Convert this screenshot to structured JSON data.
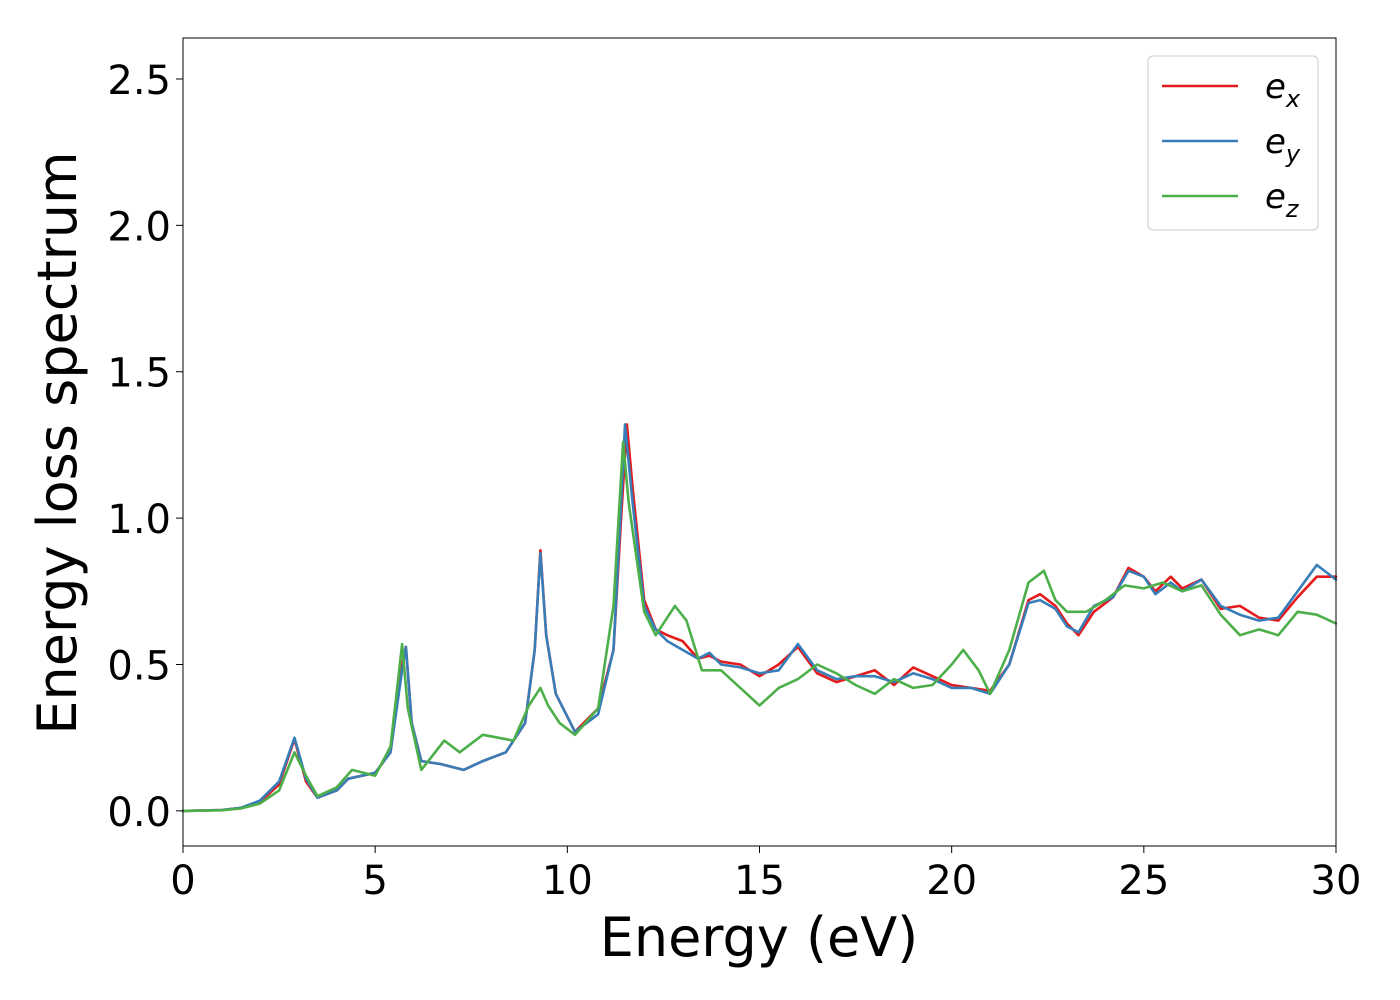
{
  "chart_data": {
    "type": "line",
    "title": "",
    "xlabel": "Energy (eV)",
    "ylabel": "Energy loss spectrum",
    "xlim": [
      0,
      30
    ],
    "ylim": [
      -0.12,
      2.64
    ],
    "xticks": [
      0,
      5,
      10,
      15,
      20,
      25,
      30
    ],
    "xtick_labels": [
      "0",
      "5",
      "10",
      "15",
      "20",
      "25",
      "30"
    ],
    "yticks": [
      0.0,
      0.5,
      1.0,
      1.5,
      2.0,
      2.5
    ],
    "ytick_labels": [
      "0.0",
      "0.5",
      "1.0",
      "1.5",
      "2.0",
      "2.5"
    ],
    "grid": false,
    "legend_position": "top-right",
    "series": [
      {
        "name": "e",
        "subscript": "x",
        "color": "#e41a1c",
        "points": [
          [
            0,
            0
          ],
          [
            1,
            0.003
          ],
          [
            1.5,
            0.01
          ],
          [
            2,
            0.03
          ],
          [
            2.5,
            0.09
          ],
          [
            2.9,
            0.245
          ],
          [
            3.2,
            0.1
          ],
          [
            3.5,
            0.045
          ],
          [
            4,
            0.07
          ],
          [
            4.3,
            0.11
          ],
          [
            5,
            0.13
          ],
          [
            5.4,
            0.2
          ],
          [
            5.7,
            0.5
          ],
          [
            5.8,
            0.56
          ],
          [
            5.95,
            0.3
          ],
          [
            6.2,
            0.17
          ],
          [
            6.7,
            0.16
          ],
          [
            7.3,
            0.14
          ],
          [
            7.8,
            0.17
          ],
          [
            8.4,
            0.2
          ],
          [
            8.9,
            0.3
          ],
          [
            9.15,
            0.55
          ],
          [
            9.3,
            0.89
          ],
          [
            9.45,
            0.6
          ],
          [
            9.7,
            0.4
          ],
          [
            10.2,
            0.27
          ],
          [
            10.8,
            0.35
          ],
          [
            11.2,
            0.55
          ],
          [
            11.4,
            1.0
          ],
          [
            11.55,
            1.32
          ],
          [
            11.7,
            1.1
          ],
          [
            12,
            0.72
          ],
          [
            12.3,
            0.62
          ],
          [
            12.6,
            0.6
          ],
          [
            13,
            0.58
          ],
          [
            13.4,
            0.52
          ],
          [
            13.7,
            0.53
          ],
          [
            14,
            0.51
          ],
          [
            14.5,
            0.5
          ],
          [
            15,
            0.46
          ],
          [
            15.5,
            0.5
          ],
          [
            16,
            0.56
          ],
          [
            16.5,
            0.47
          ],
          [
            17,
            0.44
          ],
          [
            17.5,
            0.46
          ],
          [
            18,
            0.48
          ],
          [
            18.5,
            0.43
          ],
          [
            19,
            0.49
          ],
          [
            19.5,
            0.46
          ],
          [
            20,
            0.43
          ],
          [
            20.5,
            0.42
          ],
          [
            21,
            0.41
          ],
          [
            21.5,
            0.5
          ],
          [
            22,
            0.72
          ],
          [
            22.3,
            0.74
          ],
          [
            22.7,
            0.7
          ],
          [
            23,
            0.64
          ],
          [
            23.3,
            0.6
          ],
          [
            23.7,
            0.68
          ],
          [
            24.2,
            0.73
          ],
          [
            24.6,
            0.83
          ],
          [
            25,
            0.8
          ],
          [
            25.3,
            0.75
          ],
          [
            25.7,
            0.8
          ],
          [
            26,
            0.76
          ],
          [
            26.5,
            0.79
          ],
          [
            27,
            0.69
          ],
          [
            27.5,
            0.7
          ],
          [
            28,
            0.66
          ],
          [
            28.5,
            0.65
          ],
          [
            29,
            0.73
          ],
          [
            29.5,
            0.8
          ],
          [
            30,
            0.8
          ]
        ]
      },
      {
        "name": "e",
        "subscript": "y",
        "color": "#377eb8",
        "points": [
          [
            0,
            0
          ],
          [
            1,
            0.003
          ],
          [
            1.5,
            0.01
          ],
          [
            2,
            0.035
          ],
          [
            2.5,
            0.1
          ],
          [
            2.9,
            0.25
          ],
          [
            3.2,
            0.11
          ],
          [
            3.5,
            0.045
          ],
          [
            4,
            0.07
          ],
          [
            4.3,
            0.11
          ],
          [
            5,
            0.13
          ],
          [
            5.4,
            0.2
          ],
          [
            5.7,
            0.48
          ],
          [
            5.8,
            0.56
          ],
          [
            5.95,
            0.3
          ],
          [
            6.2,
            0.17
          ],
          [
            6.7,
            0.16
          ],
          [
            7.3,
            0.14
          ],
          [
            7.8,
            0.17
          ],
          [
            8.4,
            0.2
          ],
          [
            8.9,
            0.3
          ],
          [
            9.15,
            0.55
          ],
          [
            9.3,
            0.88
          ],
          [
            9.45,
            0.6
          ],
          [
            9.7,
            0.4
          ],
          [
            10.2,
            0.27
          ],
          [
            10.8,
            0.33
          ],
          [
            11.2,
            0.55
          ],
          [
            11.4,
            1.05
          ],
          [
            11.5,
            1.32
          ],
          [
            11.7,
            1.05
          ],
          [
            12,
            0.7
          ],
          [
            12.3,
            0.62
          ],
          [
            12.6,
            0.58
          ],
          [
            13,
            0.55
          ],
          [
            13.4,
            0.52
          ],
          [
            13.7,
            0.54
          ],
          [
            14,
            0.5
          ],
          [
            14.5,
            0.49
          ],
          [
            15,
            0.47
          ],
          [
            15.5,
            0.48
          ],
          [
            16,
            0.57
          ],
          [
            16.5,
            0.48
          ],
          [
            17,
            0.45
          ],
          [
            17.5,
            0.46
          ],
          [
            18,
            0.46
          ],
          [
            18.5,
            0.44
          ],
          [
            19,
            0.47
          ],
          [
            19.5,
            0.45
          ],
          [
            20,
            0.42
          ],
          [
            20.5,
            0.42
          ],
          [
            21,
            0.4
          ],
          [
            21.5,
            0.5
          ],
          [
            22,
            0.71
          ],
          [
            22.3,
            0.72
          ],
          [
            22.7,
            0.69
          ],
          [
            23,
            0.63
          ],
          [
            23.3,
            0.61
          ],
          [
            23.7,
            0.7
          ],
          [
            24.2,
            0.73
          ],
          [
            24.6,
            0.82
          ],
          [
            25,
            0.8
          ],
          [
            25.3,
            0.74
          ],
          [
            25.7,
            0.78
          ],
          [
            26,
            0.75
          ],
          [
            26.5,
            0.79
          ],
          [
            27,
            0.7
          ],
          [
            27.5,
            0.67
          ],
          [
            28,
            0.65
          ],
          [
            28.5,
            0.66
          ],
          [
            29,
            0.75
          ],
          [
            29.5,
            0.84
          ],
          [
            30,
            0.79
          ]
        ]
      },
      {
        "name": "e",
        "subscript": "z",
        "color": "#4daf4a",
        "points": [
          [
            0,
            0
          ],
          [
            1,
            0.002
          ],
          [
            1.5,
            0.008
          ],
          [
            2,
            0.025
          ],
          [
            2.5,
            0.07
          ],
          [
            2.9,
            0.2
          ],
          [
            3.2,
            0.12
          ],
          [
            3.5,
            0.05
          ],
          [
            4,
            0.08
          ],
          [
            4.4,
            0.14
          ],
          [
            5,
            0.12
          ],
          [
            5.4,
            0.22
          ],
          [
            5.6,
            0.45
          ],
          [
            5.7,
            0.57
          ],
          [
            5.85,
            0.35
          ],
          [
            6.2,
            0.14
          ],
          [
            6.8,
            0.24
          ],
          [
            7.2,
            0.2
          ],
          [
            7.8,
            0.26
          ],
          [
            8.2,
            0.25
          ],
          [
            8.6,
            0.24
          ],
          [
            9,
            0.36
          ],
          [
            9.3,
            0.42
          ],
          [
            9.5,
            0.36
          ],
          [
            9.8,
            0.3
          ],
          [
            10.2,
            0.26
          ],
          [
            10.8,
            0.35
          ],
          [
            11.2,
            0.7
          ],
          [
            11.45,
            1.26
          ],
          [
            11.6,
            1.05
          ],
          [
            12,
            0.68
          ],
          [
            12.3,
            0.6
          ],
          [
            12.8,
            0.7
          ],
          [
            13.1,
            0.65
          ],
          [
            13.5,
            0.48
          ],
          [
            14,
            0.48
          ],
          [
            14.5,
            0.42
          ],
          [
            15,
            0.36
          ],
          [
            15.5,
            0.42
          ],
          [
            16,
            0.45
          ],
          [
            16.5,
            0.5
          ],
          [
            17,
            0.47
          ],
          [
            17.5,
            0.43
          ],
          [
            18,
            0.4
          ],
          [
            18.5,
            0.45
          ],
          [
            19,
            0.42
          ],
          [
            19.5,
            0.43
          ],
          [
            20,
            0.5
          ],
          [
            20.3,
            0.55
          ],
          [
            20.7,
            0.48
          ],
          [
            21,
            0.4
          ],
          [
            21.5,
            0.55
          ],
          [
            22,
            0.78
          ],
          [
            22.4,
            0.82
          ],
          [
            22.7,
            0.72
          ],
          [
            23,
            0.68
          ],
          [
            23.5,
            0.68
          ],
          [
            24,
            0.72
          ],
          [
            24.5,
            0.77
          ],
          [
            25,
            0.76
          ],
          [
            25.5,
            0.78
          ],
          [
            26,
            0.75
          ],
          [
            26.5,
            0.77
          ],
          [
            27,
            0.67
          ],
          [
            27.5,
            0.6
          ],
          [
            28,
            0.62
          ],
          [
            28.5,
            0.6
          ],
          [
            29,
            0.68
          ],
          [
            29.5,
            0.67
          ],
          [
            30,
            0.64
          ]
        ]
      }
    ]
  }
}
